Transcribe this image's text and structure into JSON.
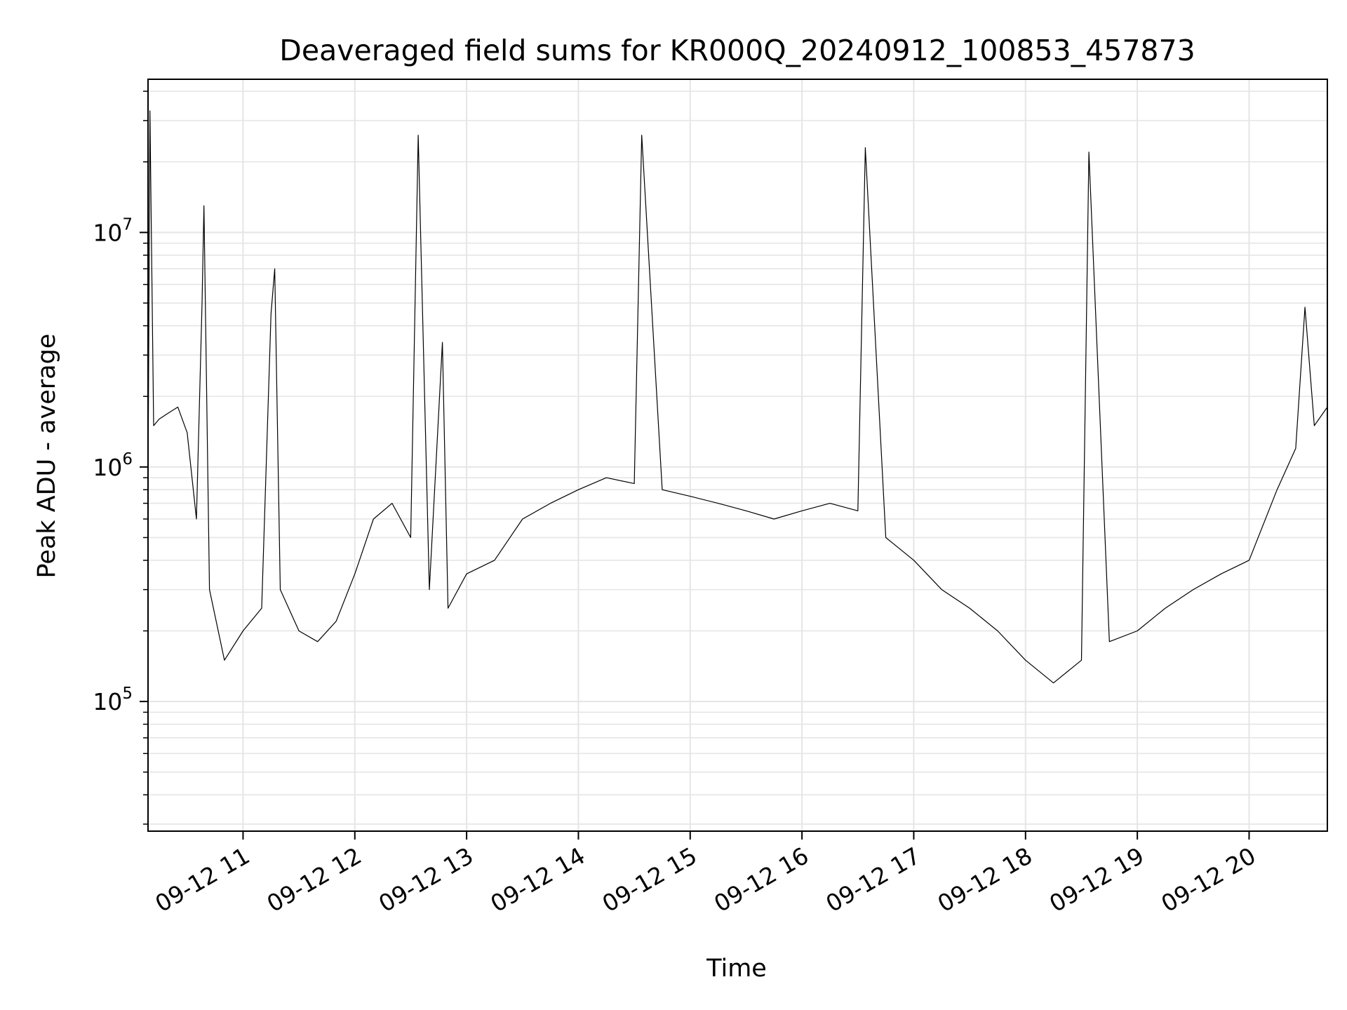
{
  "chart_data": {
    "type": "line",
    "title": "Deaveraged field sums for KR000Q_20240912_100853_457873",
    "xlabel": "Time",
    "ylabel": "Peak ADU - average",
    "yscale": "log",
    "ylim": [
      28000,
      45000000
    ],
    "xlim": [
      "2024-09-12T10:09:00",
      "2024-09-12T20:42:00"
    ],
    "grid": true,
    "line_color": "#000000",
    "grid_color": "#e5e5e5",
    "x_ticks": [
      {
        "t": "2024-09-12T11:00:00",
        "label": "09-12 11"
      },
      {
        "t": "2024-09-12T12:00:00",
        "label": "09-12 12"
      },
      {
        "t": "2024-09-12T13:00:00",
        "label": "09-12 13"
      },
      {
        "t": "2024-09-12T14:00:00",
        "label": "09-12 14"
      },
      {
        "t": "2024-09-12T15:00:00",
        "label": "09-12 15"
      },
      {
        "t": "2024-09-12T16:00:00",
        "label": "09-12 16"
      },
      {
        "t": "2024-09-12T17:00:00",
        "label": "09-12 17"
      },
      {
        "t": "2024-09-12T18:00:00",
        "label": "09-12 18"
      },
      {
        "t": "2024-09-12T19:00:00",
        "label": "09-12 19"
      },
      {
        "t": "2024-09-12T20:00:00",
        "label": "09-12 20"
      }
    ],
    "y_ticks": [
      {
        "value": 100000,
        "base": "10",
        "exp": "5"
      },
      {
        "value": 1000000,
        "base": "10",
        "exp": "6"
      },
      {
        "value": 10000000,
        "base": "10",
        "exp": "7"
      }
    ],
    "series": [
      {
        "values": [
          [
            "2024-09-12T10:09:00",
            800000
          ],
          [
            "2024-09-12T10:10:00",
            33000000
          ],
          [
            "2024-09-12T10:12:00",
            1500000
          ],
          [
            "2024-09-12T10:15:00",
            1600000
          ],
          [
            "2024-09-12T10:20:00",
            1700000
          ],
          [
            "2024-09-12T10:25:00",
            1800000
          ],
          [
            "2024-09-12T10:30:00",
            1400000
          ],
          [
            "2024-09-12T10:35:00",
            600000
          ],
          [
            "2024-09-12T10:38:00",
            5000000
          ],
          [
            "2024-09-12T10:39:00",
            13000000
          ],
          [
            "2024-09-12T10:42:00",
            300000
          ],
          [
            "2024-09-12T10:50:00",
            150000
          ],
          [
            "2024-09-12T11:00:00",
            200000
          ],
          [
            "2024-09-12T11:10:00",
            250000
          ],
          [
            "2024-09-12T11:15:00",
            4500000
          ],
          [
            "2024-09-12T11:17:00",
            7000000
          ],
          [
            "2024-09-12T11:20:00",
            300000
          ],
          [
            "2024-09-12T11:30:00",
            200000
          ],
          [
            "2024-09-12T11:40:00",
            180000
          ],
          [
            "2024-09-12T11:50:00",
            220000
          ],
          [
            "2024-09-12T12:00:00",
            350000
          ],
          [
            "2024-09-12T12:10:00",
            600000
          ],
          [
            "2024-09-12T12:20:00",
            700000
          ],
          [
            "2024-09-12T12:30:00",
            500000
          ],
          [
            "2024-09-12T12:34:00",
            26000000
          ],
          [
            "2024-09-12T12:40:00",
            300000
          ],
          [
            "2024-09-12T12:47:00",
            3400000
          ],
          [
            "2024-09-12T12:50:00",
            250000
          ],
          [
            "2024-09-12T13:00:00",
            350000
          ],
          [
            "2024-09-12T13:15:00",
            400000
          ],
          [
            "2024-09-12T13:30:00",
            600000
          ],
          [
            "2024-09-12T13:45:00",
            700000
          ],
          [
            "2024-09-12T14:00:00",
            800000
          ],
          [
            "2024-09-12T14:15:00",
            900000
          ],
          [
            "2024-09-12T14:30:00",
            850000
          ],
          [
            "2024-09-12T14:34:00",
            26000000
          ],
          [
            "2024-09-12T14:45:00",
            800000
          ],
          [
            "2024-09-12T15:00:00",
            750000
          ],
          [
            "2024-09-12T15:15:00",
            700000
          ],
          [
            "2024-09-12T15:30:00",
            650000
          ],
          [
            "2024-09-12T15:45:00",
            600000
          ],
          [
            "2024-09-12T16:00:00",
            650000
          ],
          [
            "2024-09-12T16:15:00",
            700000
          ],
          [
            "2024-09-12T16:30:00",
            650000
          ],
          [
            "2024-09-12T16:34:00",
            23000000
          ],
          [
            "2024-09-12T16:45:00",
            500000
          ],
          [
            "2024-09-12T17:00:00",
            400000
          ],
          [
            "2024-09-12T17:15:00",
            300000
          ],
          [
            "2024-09-12T17:30:00",
            250000
          ],
          [
            "2024-09-12T17:45:00",
            200000
          ],
          [
            "2024-09-12T18:00:00",
            150000
          ],
          [
            "2024-09-12T18:15:00",
            120000
          ],
          [
            "2024-09-12T18:30:00",
            150000
          ],
          [
            "2024-09-12T18:34:00",
            22000000
          ],
          [
            "2024-09-12T18:45:00",
            180000
          ],
          [
            "2024-09-12T19:00:00",
            200000
          ],
          [
            "2024-09-12T19:15:00",
            250000
          ],
          [
            "2024-09-12T19:30:00",
            300000
          ],
          [
            "2024-09-12T19:45:00",
            350000
          ],
          [
            "2024-09-12T20:00:00",
            400000
          ],
          [
            "2024-09-12T20:15:00",
            800000
          ],
          [
            "2024-09-12T20:25:00",
            1200000
          ],
          [
            "2024-09-12T20:30:00",
            4800000
          ],
          [
            "2024-09-12T20:35:00",
            1500000
          ],
          [
            "2024-09-12T20:42:00",
            1800000
          ]
        ]
      }
    ]
  }
}
